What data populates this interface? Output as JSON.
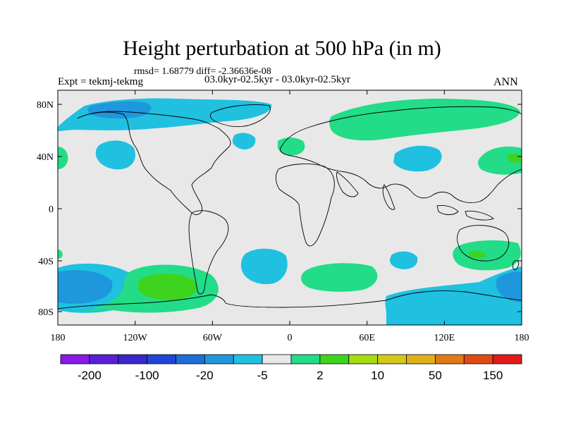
{
  "title": "Height perturbation at 500 hPa (in m)",
  "stats_text": "rmsd= 1.68779 diff= -2.36636e-08",
  "experiment_text": "Expt = tekmj-tekmg",
  "period_text": "03.0kyr-02.5kyr - 03.0kyr-02.5kyr",
  "season": "ANN",
  "lat_ticks": [
    "80N",
    "40N",
    "0",
    "40S",
    "80S"
  ],
  "lon_ticks": [
    "180",
    "120W",
    "60W",
    "0",
    "60E",
    "120E",
    "180"
  ],
  "colorbar": {
    "colors": [
      "#8a18e6",
      "#5a1ed8",
      "#3a28cc",
      "#2046d6",
      "#1e6ed8",
      "#1f97dc",
      "#1fc0e0",
      "#e8e8e8",
      "#22dc88",
      "#3ed41e",
      "#a6dc14",
      "#d4c81a",
      "#deb01a",
      "#e07a18",
      "#e04a14",
      "#e01a1a"
    ],
    "labels": [
      "-200",
      "-100",
      "-20",
      "-5",
      "2",
      "10",
      "50",
      "150"
    ]
  }
}
